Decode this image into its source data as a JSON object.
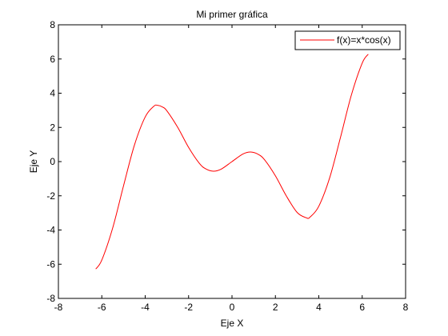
{
  "chart_data": {
    "type": "line",
    "title": "Mi primer gráfica",
    "xlabel": "Eje X",
    "ylabel": "Eje Y",
    "xlim": [
      -8,
      8
    ],
    "ylim": [
      -8,
      8
    ],
    "xticks": [
      "-8",
      "-6",
      "-4",
      "-2",
      "0",
      "2",
      "4",
      "6",
      "8"
    ],
    "yticks": [
      "-8",
      "-6",
      "-4",
      "-2",
      "0",
      "2",
      "4",
      "6",
      "8"
    ],
    "grid": false,
    "legend_position": "top-right",
    "series": [
      {
        "name": "f(x)=x*cos(x)",
        "color": "#ff0000",
        "x": [
          -6.28,
          -6.0,
          -5.5,
          -5.0,
          -4.5,
          -4.0,
          -3.6,
          -3.43,
          -3.2,
          -3.0,
          -2.5,
          -2.0,
          -1.5,
          -1.2,
          -0.86,
          -0.5,
          0.0,
          0.5,
          0.86,
          1.2,
          1.5,
          2.0,
          2.5,
          3.0,
          3.43,
          3.6,
          4.0,
          4.5,
          5.0,
          5.5,
          6.0,
          6.28
        ],
        "y": [
          -6.28,
          -5.76,
          -3.89,
          -1.42,
          0.95,
          2.61,
          3.24,
          3.29,
          3.19,
          2.97,
          2.0,
          0.83,
          -0.11,
          -0.43,
          -0.56,
          -0.44,
          0.0,
          0.44,
          0.56,
          0.43,
          0.11,
          -0.83,
          -2.0,
          -2.97,
          -3.29,
          -3.24,
          -2.61,
          -0.95,
          1.42,
          3.89,
          5.76,
          6.28
        ]
      }
    ]
  }
}
